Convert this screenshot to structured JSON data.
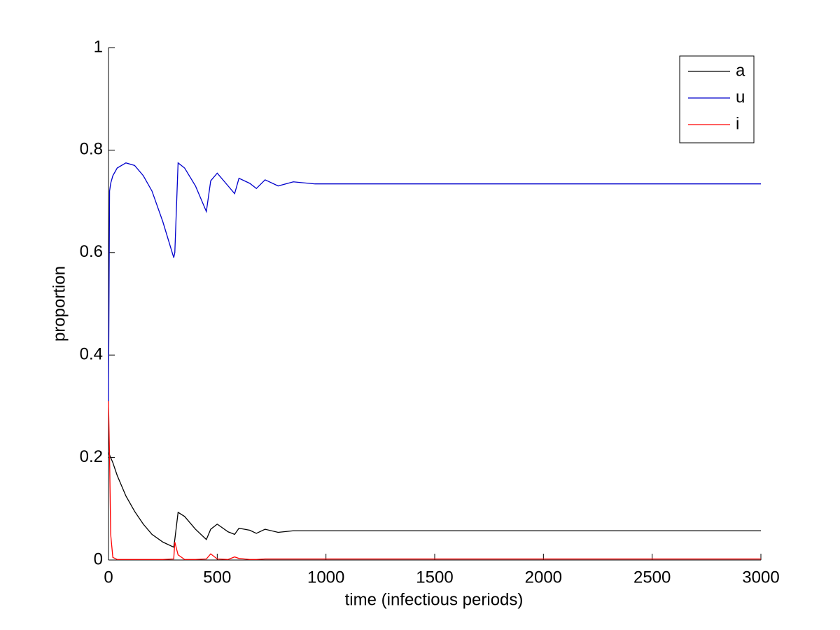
{
  "chart_data": {
    "type": "line",
    "xlabel": "time (infectious periods)",
    "ylabel": "proportion",
    "x": [
      0,
      5,
      10,
      20,
      40,
      80,
      120,
      160,
      200,
      250,
      300,
      305,
      320,
      350,
      400,
      450,
      470,
      500,
      550,
      580,
      600,
      650,
      680,
      720,
      780,
      850,
      950,
      1000,
      1500,
      2000,
      2500,
      3000
    ],
    "series": [
      {
        "name": "a",
        "color": "#000000",
        "values": [
          0.21,
          0.205,
          0.2,
          0.19,
          0.165,
          0.125,
          0.095,
          0.07,
          0.05,
          0.035,
          0.025,
          0.04,
          0.093,
          0.085,
          0.06,
          0.04,
          0.06,
          0.07,
          0.055,
          0.05,
          0.062,
          0.058,
          0.052,
          0.06,
          0.054,
          0.057,
          0.057,
          0.057,
          0.057,
          0.057,
          0.057,
          0.057
        ]
      },
      {
        "name": "u",
        "color": "#0000cc",
        "values": [
          0.31,
          0.72,
          0.735,
          0.75,
          0.765,
          0.775,
          0.77,
          0.75,
          0.72,
          0.66,
          0.59,
          0.6,
          0.775,
          0.765,
          0.73,
          0.68,
          0.74,
          0.755,
          0.73,
          0.715,
          0.745,
          0.735,
          0.725,
          0.742,
          0.73,
          0.738,
          0.734,
          0.734,
          0.734,
          0.734,
          0.734,
          0.734
        ]
      },
      {
        "name": "i",
        "color": "#ff0000",
        "values": [
          0.31,
          0.2,
          0.05,
          0.005,
          0.001,
          0.001,
          0.001,
          0.001,
          0.001,
          0.001,
          0.002,
          0.035,
          0.01,
          0.001,
          0.001,
          0.002,
          0.012,
          0.002,
          0.001,
          0.006,
          0.003,
          0.001,
          0.001,
          0.002,
          0.002,
          0.002,
          0.002,
          0.002,
          0.002,
          0.002,
          0.002,
          0.002
        ]
      }
    ],
    "xlim": [
      0,
      3000
    ],
    "xticks": [
      0,
      500,
      1000,
      1500,
      2000,
      2500,
      3000
    ],
    "ylim": [
      0,
      1
    ],
    "yticks": [
      0,
      0.2,
      0.4,
      0.6,
      0.8,
      1
    ],
    "grid": false,
    "legend": "northeast"
  }
}
